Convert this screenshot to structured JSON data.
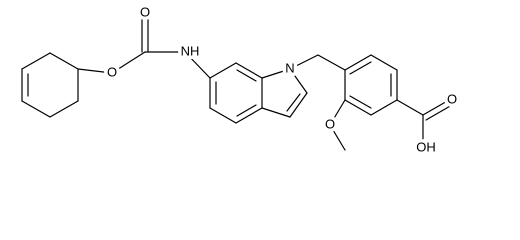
{
  "labels": [
    "O",
    "O",
    "NH",
    "N",
    "O",
    "O",
    "OH"
  ]
}
